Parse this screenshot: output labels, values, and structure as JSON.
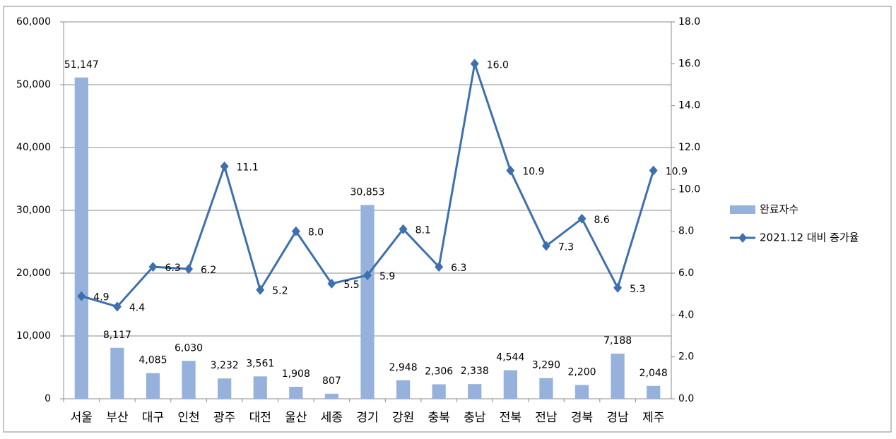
{
  "chart_data": {
    "type": "combo",
    "categories": [
      "서울",
      "부산",
      "대구",
      "인천",
      "광주",
      "대전",
      "울산",
      "세종",
      "경기",
      "강원",
      "충북",
      "충남",
      "전북",
      "전남",
      "경북",
      "경남",
      "제주"
    ],
    "series": [
      {
        "name": "완료자수",
        "type": "bar",
        "color": "#95b1dc",
        "values": [
          51147,
          8117,
          4085,
          6030,
          3232,
          3561,
          1908,
          807,
          30853,
          2948,
          2306,
          2338,
          4544,
          3290,
          2200,
          7188,
          2048
        ],
        "value_labels": [
          "51,147",
          "8,117",
          "4,085",
          "6,030",
          "3,232",
          "3,561",
          "1,908",
          "807",
          "30,853",
          "2,948",
          "2,306",
          "2,338",
          "4,544",
          "3,290",
          "2,200",
          "7,188",
          "2,048"
        ]
      },
      {
        "name": "2021.12 대비 증가율",
        "type": "line",
        "axis": "y2",
        "color": "#3e6fae",
        "values": [
          4.9,
          4.4,
          6.3,
          6.2,
          11.1,
          5.2,
          8.0,
          5.5,
          5.9,
          8.1,
          6.3,
          16.0,
          10.9,
          7.3,
          8.6,
          5.3,
          10.9
        ],
        "value_labels": [
          "4.9",
          "4.4",
          "6.3",
          "6.2",
          "11.1",
          "5.2",
          "8.0",
          "5.5",
          "5.9",
          "8.1",
          "6.3",
          "16.0",
          "10.9",
          "7.3",
          "8.6",
          "5.3",
          "10.9"
        ]
      }
    ],
    "ylim": [
      0,
      60000
    ],
    "yticks": [
      0,
      {
        "value": 10000,
        "label": "10,000"
      },
      {
        "value": 20000,
        "label": "20,000"
      },
      {
        "value": 30000,
        "label": "30,000"
      },
      {
        "value": 40000,
        "label": "40,000"
      },
      {
        "value": 50000,
        "label": "50,000"
      },
      {
        "value": 60000,
        "label": "60,000"
      }
    ],
    "y2lim": [
      0,
      18
    ],
    "y2ticks": [
      {
        "value": 0,
        "label": "0.0"
      },
      {
        "value": 2,
        "label": "2.0"
      },
      {
        "value": 4,
        "label": "4.0"
      },
      {
        "value": 6,
        "label": "6.0"
      },
      {
        "value": 8,
        "label": "8.0"
      },
      {
        "value": 10,
        "label": "10.0"
      },
      {
        "value": 12,
        "label": "12.0"
      },
      {
        "value": 14,
        "label": "14.0"
      },
      {
        "value": 16,
        "label": "16.0"
      },
      {
        "value": 18,
        "label": "18.0"
      }
    ],
    "grid": true,
    "legend": "right"
  }
}
